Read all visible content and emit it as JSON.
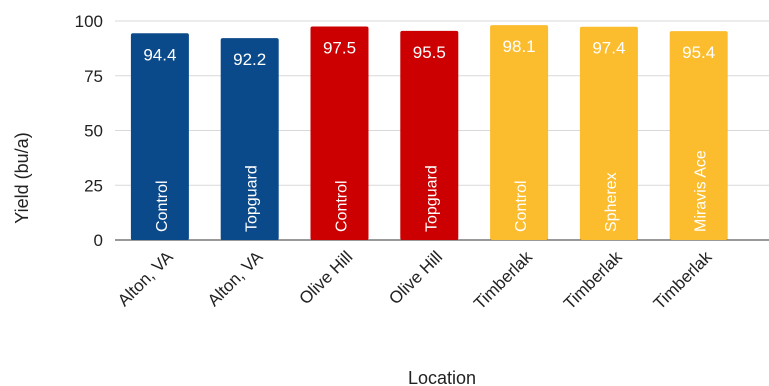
{
  "chart_data": {
    "type": "bar",
    "title": "",
    "xlabel": "Location",
    "ylabel": "Yield (bu/a)",
    "ylim": [
      0,
      100
    ],
    "yticks": [
      0,
      25,
      50,
      75,
      100
    ],
    "grid": true,
    "legend": "none",
    "categories": [
      "Alton, VA",
      "Alton, VA",
      "Olive Hill",
      "Olive Hill",
      "Timberlak",
      "Timberlak",
      "Timberlak"
    ],
    "treatments": [
      "Control",
      "Topguard",
      "Control",
      "Topguard",
      "Control",
      "Spherex",
      "Miravis Ace"
    ],
    "values": [
      94.4,
      92.2,
      97.5,
      95.5,
      98.1,
      97.4,
      95.4
    ],
    "value_labels": [
      "94.4",
      "92.2",
      "97.5",
      "95.5",
      "98.1",
      "97.4",
      "95.4"
    ],
    "bar_colors": [
      "#0b4a8a",
      "#0b4a8a",
      "#cc0000",
      "#cc0000",
      "#fbbc2e",
      "#fbbc2e",
      "#fbbc2e"
    ],
    "gridline_color": "#d9d9d9"
  }
}
